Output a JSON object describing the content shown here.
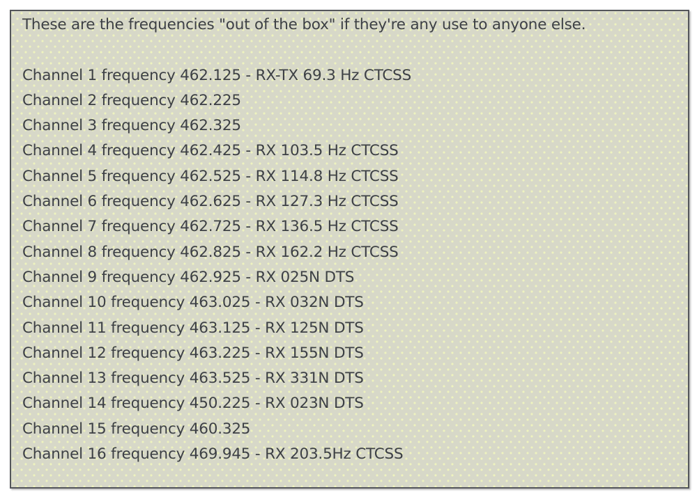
{
  "freq_box": {
    "intro": "These are the frequencies \"out of the box\" if they're any use to anyone else.",
    "channels": [
      {
        "channel": 1,
        "frequency": "462.125",
        "tone": "RX-TX 69.3 Hz CTCSS",
        "line": "Channel 1 frequency 462.125 - RX-TX 69.3 Hz CTCSS"
      },
      {
        "channel": 2,
        "frequency": "462.225",
        "tone": "",
        "line": "Channel 2 frequency 462.225"
      },
      {
        "channel": 3,
        "frequency": "462.325",
        "tone": "",
        "line": "Channel 3 frequency 462.325"
      },
      {
        "channel": 4,
        "frequency": "462.425",
        "tone": "RX 103.5 Hz CTCSS",
        "line": "Channel 4 frequency 462.425 - RX 103.5 Hz CTCSS"
      },
      {
        "channel": 5,
        "frequency": "462.525",
        "tone": "RX 114.8 Hz CTCSS",
        "line": "Channel 5 frequency 462.525 - RX 114.8 Hz CTCSS"
      },
      {
        "channel": 6,
        "frequency": "462.625",
        "tone": "RX 127.3 Hz CTCSS",
        "line": "Channel 6 frequency 462.625 - RX 127.3 Hz CTCSS"
      },
      {
        "channel": 7,
        "frequency": "462.725",
        "tone": "RX 136.5 Hz CTCSS",
        "line": "Channel 7 frequency 462.725 - RX 136.5 Hz CTCSS"
      },
      {
        "channel": 8,
        "frequency": "462.825",
        "tone": "RX 162.2 Hz CTCSS",
        "line": "Channel 8 frequency 462.825 - RX 162.2 Hz CTCSS"
      },
      {
        "channel": 9,
        "frequency": "462.925",
        "tone": "RX 025N DTS",
        "line": "Channel 9 frequency 462.925 - RX 025N DTS"
      },
      {
        "channel": 10,
        "frequency": "463.025",
        "tone": "RX 032N DTS",
        "line": "Channel 10 frequency 463.025 - RX 032N DTS"
      },
      {
        "channel": 11,
        "frequency": "463.125",
        "tone": "RX 125N DTS",
        "line": "Channel 11 frequency 463.125 - RX 125N DTS"
      },
      {
        "channel": 12,
        "frequency": "463.225",
        "tone": "RX 155N DTS",
        "line": "Channel 12 frequency 463.225 - RX 155N DTS"
      },
      {
        "channel": 13,
        "frequency": "463.525",
        "tone": "RX 331N DTS",
        "line": "Channel 13 frequency 463.525 - RX 331N DTS"
      },
      {
        "channel": 14,
        "frequency": "450.225",
        "tone": "RX 023N DTS",
        "line": "Channel 14 frequency 450.225 - RX 023N DTS"
      },
      {
        "channel": 15,
        "frequency": "460.325",
        "tone": "",
        "line": "Channel 15 frequency 460.325"
      },
      {
        "channel": 16,
        "frequency": "469.945",
        "tone": "RX 203.5Hz CTCSS",
        "line": "Channel 16 frequency 469.945 - RX 203.5Hz CTCSS"
      }
    ],
    "colors": {
      "panel_background": "#d7d8c8",
      "panel_dot": "#eef3be",
      "panel_border": "#54565a",
      "text": "#3d4045",
      "page_background": "#ffffff"
    }
  }
}
